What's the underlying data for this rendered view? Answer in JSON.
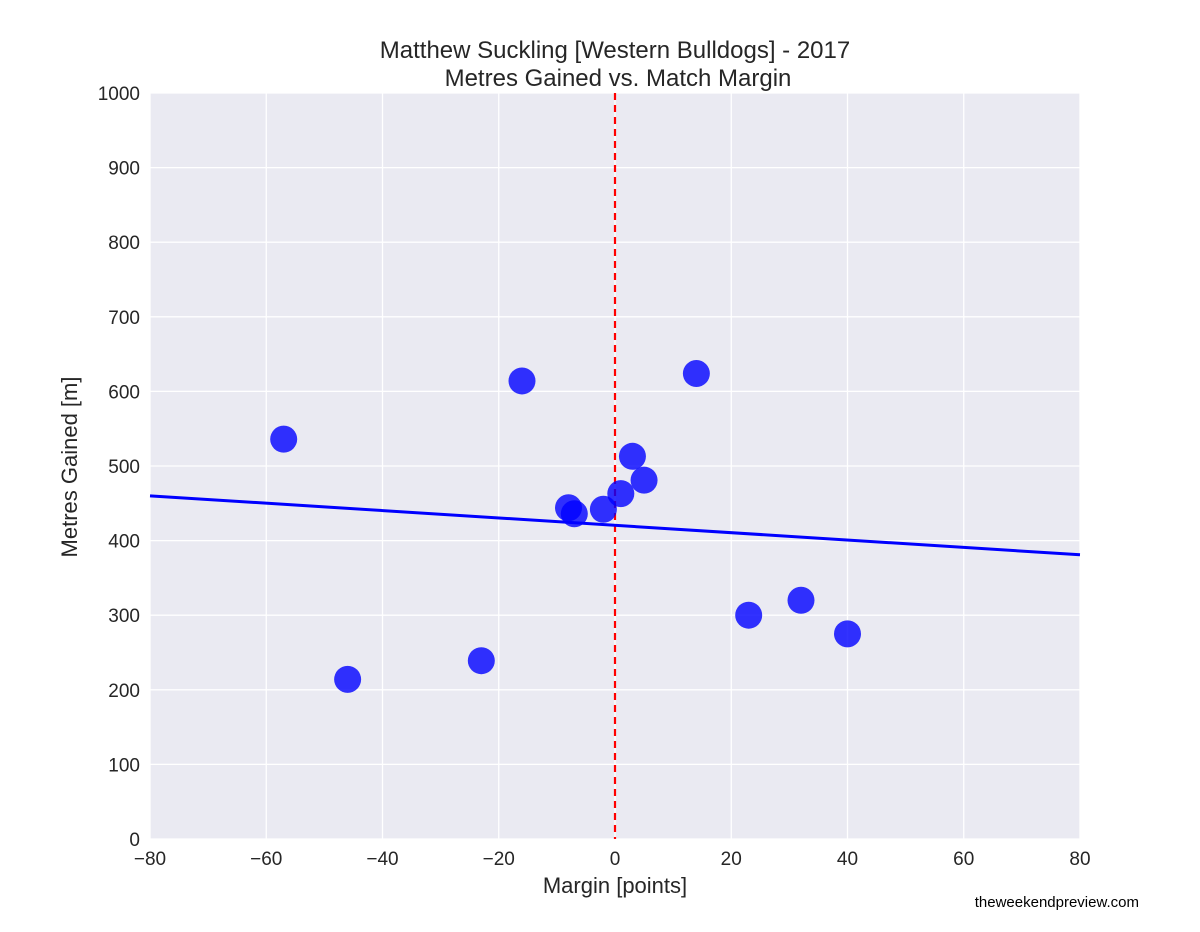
{
  "chart_data": {
    "type": "scatter",
    "title": "Matthew Suckling [Western Bulldogs] - 2017",
    "subtitle": "Metres Gained vs. Match Margin",
    "xlabel": "Margin [points]",
    "ylabel": "Metres Gained [m]",
    "xlim": [
      -80,
      80
    ],
    "ylim": [
      0,
      1000
    ],
    "xticks": [
      -80,
      -60,
      -40,
      -20,
      0,
      20,
      40,
      60,
      80
    ],
    "xtick_labels": [
      "−80",
      "−60",
      "−40",
      "−20",
      "0",
      "20",
      "40",
      "60",
      "80"
    ],
    "yticks": [
      0,
      100,
      200,
      300,
      400,
      500,
      600,
      700,
      800,
      900,
      1000
    ],
    "ytick_labels": [
      "0",
      "100",
      "200",
      "300",
      "400",
      "500",
      "600",
      "700",
      "800",
      "900",
      "1000"
    ],
    "grid": true,
    "points": [
      {
        "x": -57,
        "y": 536
      },
      {
        "x": -46,
        "y": 214
      },
      {
        "x": -23,
        "y": 239
      },
      {
        "x": -16,
        "y": 614
      },
      {
        "x": -8,
        "y": 444
      },
      {
        "x": -7,
        "y": 436
      },
      {
        "x": -2,
        "y": 442
      },
      {
        "x": 1,
        "y": 463
      },
      {
        "x": 3,
        "y": 513
      },
      {
        "x": 5,
        "y": 481
      },
      {
        "x": 14,
        "y": 624
      },
      {
        "x": 23,
        "y": 300
      },
      {
        "x": 32,
        "y": 320
      },
      {
        "x": 40,
        "y": 275
      }
    ],
    "trend_line": {
      "x": [
        -80,
        80
      ],
      "y": [
        460,
        381
      ]
    },
    "reference_line": {
      "x": 0,
      "style": "dashed"
    },
    "colors": {
      "background": "#eaeaf2",
      "grid": "#ffffff",
      "points": "#0000ff",
      "trend": "#0000ff",
      "reference": "#ff0000",
      "text": "#262626"
    }
  },
  "footer": {
    "credit": "theweekendpreview.com"
  }
}
